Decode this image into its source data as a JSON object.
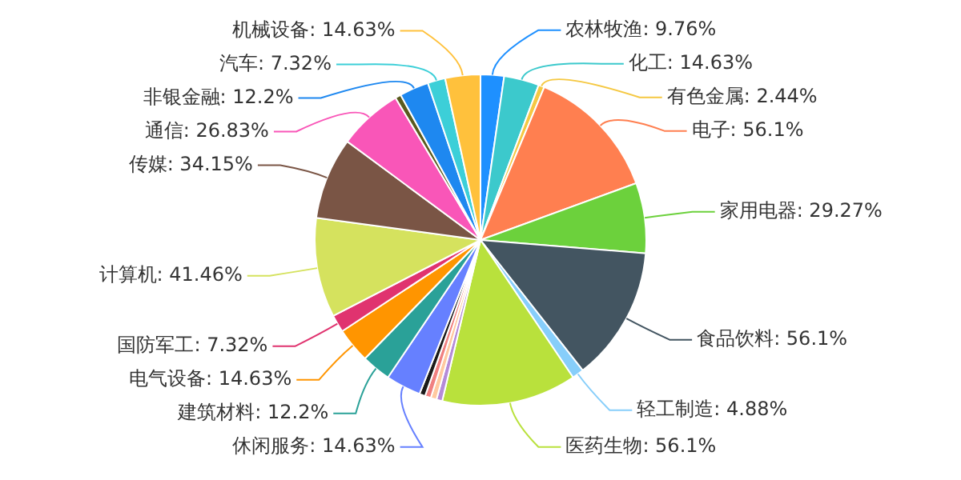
{
  "chart_data": {
    "type": "pie",
    "categories": [
      "农林牧渔",
      "化工",
      "有色金属",
      "电子",
      "家用电器",
      "食品饮料",
      "轻工制造",
      "医药生物",
      null,
      null,
      null,
      null,
      "休闲服务",
      "建筑材料",
      "电气设备",
      "国防军工",
      "计算机",
      "传媒",
      "通信",
      null,
      "非银金融",
      "汽车",
      "机械设备"
    ],
    "values": [
      9.76,
      14.63,
      2.44,
      56.1,
      29.27,
      56.1,
      4.88,
      56.1,
      2.44,
      2.44,
      2.44,
      2.44,
      14.63,
      12.2,
      14.63,
      7.32,
      41.46,
      34.15,
      26.83,
      2.44,
      12.2,
      7.32,
      14.63
    ],
    "value_labels": [
      "9.76%",
      "14.63%",
      "2.44%",
      "56.1%",
      "29.27%",
      "56.1%",
      "4.88%",
      "56.1%",
      null,
      null,
      null,
      null,
      "14.63%",
      "12.2%",
      "14.63%",
      "7.32%",
      "41.46%",
      "34.15%",
      "26.83%",
      null,
      "12.2%",
      "7.32%",
      "14.63%"
    ],
    "colors": [
      "#1e90ff",
      "#3cc9cc",
      "#f5c842",
      "#ff7f50",
      "#6cd13c",
      "#435561",
      "#87cefa",
      "#b9e13c",
      "#b58bd8",
      "#ffc9a0",
      "#f08080",
      "#1a1a1a",
      "#6680ff",
      "#2aa198",
      "#ff9500",
      "#e0336f",
      "#d5e25e",
      "#7a5545",
      "#f956b8",
      "#5a5a1e",
      "#1e88f0",
      "#3ccfd8",
      "#ffc13c"
    ],
    "legend": false
  }
}
